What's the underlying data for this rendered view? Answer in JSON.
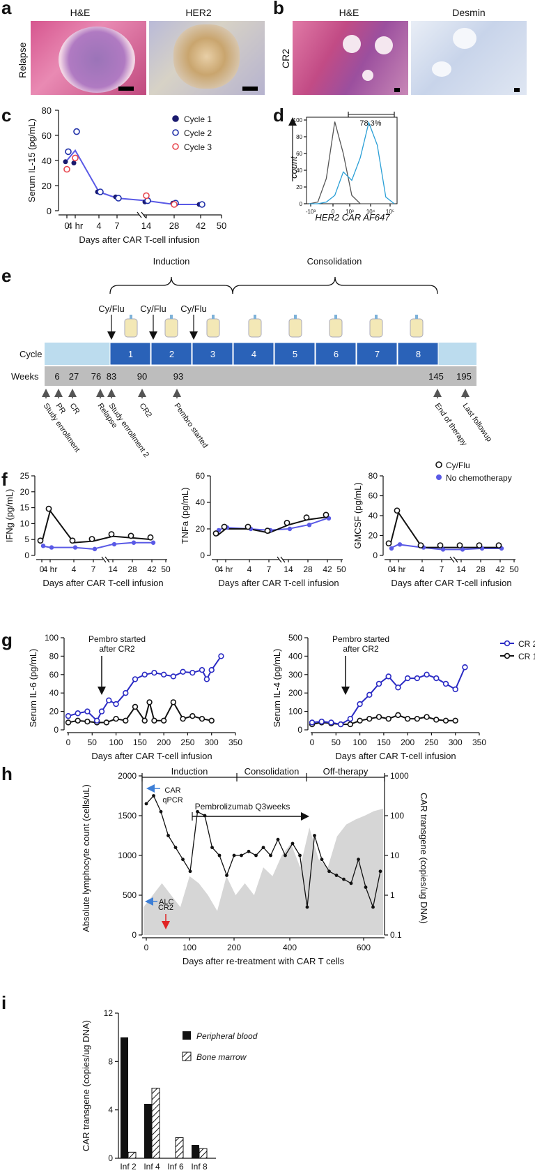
{
  "panels": {
    "a": {
      "letter": "a",
      "row_label": "Relapse",
      "images": [
        {
          "title": "H&E"
        },
        {
          "title": "HER2"
        }
      ]
    },
    "b": {
      "letter": "b",
      "row_label": "CR2",
      "images": [
        {
          "title": "H&E"
        },
        {
          "title": "Desmin"
        }
      ]
    },
    "c": {
      "letter": "c"
    },
    "d": {
      "letter": "d"
    },
    "e": {
      "letter": "e"
    },
    "f": {
      "letter": "f"
    },
    "g": {
      "letter": "g"
    },
    "h": {
      "letter": "h"
    },
    "i": {
      "letter": "i"
    }
  },
  "colors": {
    "cycle1": "#1a1a6e",
    "cycle2": "#1f2fa8",
    "cycle3": "#e8474f",
    "blue_line": "#5a5ae6",
    "cr2": "#2a2ac4",
    "timeline_light": "#bcdcee",
    "timeline_dark": "#2a62b8",
    "weeks_gray": "#bdbdbd",
    "area_gray": "#d6d6d6",
    "flow_blue": "#2a9fd6"
  },
  "chart_data": [
    {
      "id": "c",
      "type": "scatter",
      "ylabel": "Serum IL-15 (pg/mL)",
      "xlabel": "Days after CAR T-cell infusion",
      "ylim": [
        0,
        80
      ],
      "yticks": [
        "0",
        "20",
        "40",
        "60",
        "80"
      ],
      "xtick_labels": [
        "0",
        "4 hr",
        "4",
        "7",
        "14",
        "28",
        "42",
        "50"
      ],
      "legend": [
        "Cycle 1",
        "Cycle 2",
        "Cycle 3"
      ],
      "series": [
        {
          "name": "Cycle 1",
          "x": [
            "0",
            "4 hr",
            "4",
            "7",
            "14",
            "28",
            "42"
          ],
          "values": [
            39,
            38,
            15,
            11,
            7,
            6,
            5
          ]
        },
        {
          "name": "Cycle 2",
          "x": [
            "0",
            "4 hr",
            "4",
            "7",
            "14",
            "28",
            "42"
          ],
          "values": [
            47,
            63,
            15,
            10,
            8,
            6,
            5
          ]
        },
        {
          "name": "Cycle 3",
          "x": [
            "0",
            "4 hr",
            "14",
            "28"
          ],
          "values": [
            33,
            42,
            12,
            5
          ]
        },
        {
          "name": "mean",
          "x": [
            "0",
            "4 hr",
            "4",
            "7",
            "14",
            "28",
            "42"
          ],
          "values": [
            40,
            48,
            15,
            10,
            8,
            5,
            5
          ]
        }
      ]
    },
    {
      "id": "d",
      "type": "area",
      "xlabel": "HER2 CAR AF647",
      "ylabel": "count",
      "yticks": [
        "0",
        "20",
        "40",
        "60",
        "80",
        "100"
      ],
      "xticks": [
        "-10³",
        "0",
        "10³",
        "10⁴",
        "10⁵"
      ],
      "gate_label": "78.3%",
      "series": [
        {
          "name": "control",
          "values": [
            0,
            2,
            30,
            98,
            60,
            10,
            0,
            0,
            0,
            0,
            0
          ]
        },
        {
          "name": "CAR",
          "values": [
            0,
            0,
            2,
            10,
            38,
            28,
            55,
            97,
            70,
            8,
            0
          ]
        }
      ]
    },
    {
      "id": "e",
      "type": "table",
      "phases": [
        "Induction",
        "Consolidation"
      ],
      "chemo_labels": [
        "Cy/Flu",
        "Cy/Flu",
        "Cy/Flu"
      ],
      "row_cycle": "Cycle",
      "row_weeks": "Weeks",
      "cycles": [
        "1",
        "2",
        "3",
        "4",
        "5",
        "6",
        "7",
        "8"
      ],
      "weeks": [
        "6",
        "27",
        "76",
        "83",
        "90",
        "93",
        "145",
        "195"
      ],
      "events": [
        "Study enrollment",
        "PR",
        "CR",
        "Relapse",
        "Study enrollment 2",
        "CR2",
        "Pembro started",
        "End of therapy",
        "Last followup"
      ]
    },
    {
      "id": "f1",
      "type": "line",
      "ylabel": "IFNg (pg/mL)",
      "xlabel": "Days after CAR T-cell infusion",
      "ylim": [
        0,
        25
      ],
      "yticks": [
        "0",
        "5",
        "10",
        "15",
        "20",
        "25"
      ],
      "xtick_labels": [
        "0",
        "4 hr",
        "4",
        "7",
        "14",
        "28",
        "42",
        "50"
      ],
      "series": [
        {
          "name": "Cy/Flu",
          "values": [
            4,
            14,
            4,
            4.5,
            6,
            5.5,
            5
          ]
        },
        {
          "name": "No chemotherapy",
          "values": [
            3,
            2.5,
            2.5,
            2,
            3.5,
            4,
            4
          ]
        }
      ]
    },
    {
      "id": "f2",
      "type": "line",
      "ylabel": "TNFa (pg/mL)",
      "xlabel": "Days after CAR T-cell infusion",
      "ylim": [
        0,
        60
      ],
      "yticks": [
        "0",
        "20",
        "40",
        "60"
      ],
      "xtick_labels": [
        "0",
        "4 hr",
        "4",
        "7",
        "14",
        "28",
        "42",
        "50"
      ],
      "series": [
        {
          "name": "Cy/Flu",
          "values": [
            15,
            20,
            20,
            17,
            23,
            27,
            29
          ]
        },
        {
          "name": "No chemotherapy",
          "values": [
            19,
            21,
            20,
            19,
            20,
            23,
            28
          ]
        }
      ]
    },
    {
      "id": "f3",
      "type": "line",
      "ylabel": "GMCSF (pg/mL)",
      "xlabel": "Days after CAR T-cell infusion",
      "ylim": [
        0,
        80
      ],
      "yticks": [
        "0",
        "20",
        "40",
        "60",
        "80"
      ],
      "xtick_labels": [
        "0",
        "4 hr",
        "4",
        "7",
        "14",
        "28",
        "42",
        "50"
      ],
      "legend": [
        "Cy/Flu",
        "No chemotherapy"
      ],
      "series": [
        {
          "name": "Cy/Flu",
          "values": [
            10,
            43,
            8,
            8,
            8,
            8,
            8
          ]
        },
        {
          "name": "No chemotherapy",
          "values": [
            7,
            11,
            8,
            6,
            6,
            7,
            7
          ]
        }
      ]
    },
    {
      "id": "g1",
      "type": "line",
      "ylabel": "Serum IL-6 (pg/mL)",
      "xlabel": "Days after CAR T-cell infusion",
      "ylim": [
        0,
        100
      ],
      "xlim": [
        0,
        350
      ],
      "yticks": [
        "0",
        "20",
        "40",
        "60",
        "80",
        "100"
      ],
      "xticks": [
        "0",
        "50",
        "100",
        "150",
        "200",
        "250",
        "300",
        "350"
      ],
      "annotation": "Pembro started after CR2",
      "series": [
        {
          "name": "CR 2",
          "x": [
            0,
            20,
            40,
            60,
            70,
            85,
            100,
            120,
            140,
            160,
            180,
            200,
            220,
            240,
            260,
            280,
            290,
            300,
            320
          ],
          "values": [
            15,
            18,
            20,
            10,
            20,
            32,
            28,
            40,
            55,
            60,
            62,
            60,
            58,
            63,
            62,
            65,
            55,
            65,
            80
          ]
        },
        {
          "name": "CR 1",
          "x": [
            0,
            20,
            40,
            60,
            80,
            100,
            120,
            140,
            160,
            170,
            180,
            200,
            220,
            240,
            260,
            280,
            300
          ],
          "values": [
            8,
            10,
            9,
            8,
            8,
            12,
            10,
            25,
            10,
            30,
            10,
            10,
            30,
            12,
            15,
            12,
            10
          ]
        }
      ]
    },
    {
      "id": "g2",
      "type": "line",
      "ylabel": "Serum IL-4 (pg/mL)",
      "xlabel": "Days after CAR T-cell infusion",
      "ylim": [
        0,
        500
      ],
      "xlim": [
        0,
        350
      ],
      "yticks": [
        "0",
        "100",
        "200",
        "300",
        "400",
        "500"
      ],
      "xticks": [
        "0",
        "50",
        "100",
        "150",
        "200",
        "250",
        "300",
        "350"
      ],
      "annotation": "Pembro started after CR2",
      "legend": [
        "CR 2",
        "CR 1"
      ],
      "series": [
        {
          "name": "CR 2",
          "x": [
            0,
            20,
            40,
            60,
            80,
            100,
            120,
            140,
            160,
            180,
            200,
            220,
            240,
            260,
            280,
            300,
            320
          ],
          "values": [
            40,
            45,
            40,
            30,
            60,
            140,
            190,
            250,
            290,
            230,
            280,
            280,
            300,
            280,
            250,
            220,
            340
          ]
        },
        {
          "name": "CR 1",
          "x": [
            0,
            20,
            40,
            60,
            80,
            100,
            120,
            140,
            160,
            180,
            200,
            220,
            240,
            260,
            280,
            300
          ],
          "values": [
            30,
            40,
            35,
            30,
            30,
            50,
            60,
            70,
            60,
            80,
            60,
            60,
            70,
            55,
            50,
            50
          ]
        }
      ]
    },
    {
      "id": "h",
      "type": "line",
      "ylabel_left": "Absolute lymphocyte count (cells/uL)",
      "ylabel_right": "CAR transgene (copies/ug DNA)",
      "xlabel": "Days after re-treatment with CAR T cells",
      "yticks_left": [
        "0",
        "500",
        "1000",
        "1500",
        "2000"
      ],
      "yticks_right": [
        "0.1",
        "1",
        "10",
        "100",
        "1000"
      ],
      "xticks": [
        "0",
        "100",
        "200",
        "400",
        "600"
      ],
      "phases": [
        "Induction",
        "Consolidation",
        "Off-therapy"
      ],
      "labels": {
        "car": "CAR qPCR",
        "alc": "ALC",
        "cr2": "CR2",
        "pembro": "Pembrolizumab Q3weeks"
      },
      "series": [
        {
          "name": "ALC",
          "values": [
            1650,
            1750,
            1550,
            1250,
            1100,
            950,
            800,
            1550,
            1500,
            1100,
            1000,
            750,
            1000,
            1000,
            1050,
            1000,
            1100,
            1000,
            1200,
            1000,
            1150,
            1000,
            350,
            1250,
            950,
            800,
            750,
            700,
            650,
            950,
            600,
            350,
            800
          ]
        },
        {
          "name": "CAR transgene",
          "values": [
            0.5,
            1,
            2,
            1,
            0.5,
            3,
            2,
            1,
            0.4,
            3,
            1,
            2,
            1,
            5,
            3,
            10,
            20,
            5,
            50,
            8,
            5,
            30,
            60,
            80,
            100,
            130,
            150
          ]
        }
      ]
    },
    {
      "id": "i",
      "type": "bar",
      "ylabel": "CAR transgene (copies/ug DNA)",
      "ylim": [
        0,
        12
      ],
      "yticks": [
        "0",
        "4",
        "8",
        "12"
      ],
      "categories": [
        "Inf 2",
        "Inf 4",
        "Inf 6",
        "Inf 8"
      ],
      "series": [
        {
          "name": "Peripheral blood",
          "values": [
            10,
            4.5,
            0,
            1.1
          ]
        },
        {
          "name": "Bone marrow",
          "values": [
            0.5,
            5.8,
            1.7,
            0.8
          ]
        }
      ]
    }
  ]
}
